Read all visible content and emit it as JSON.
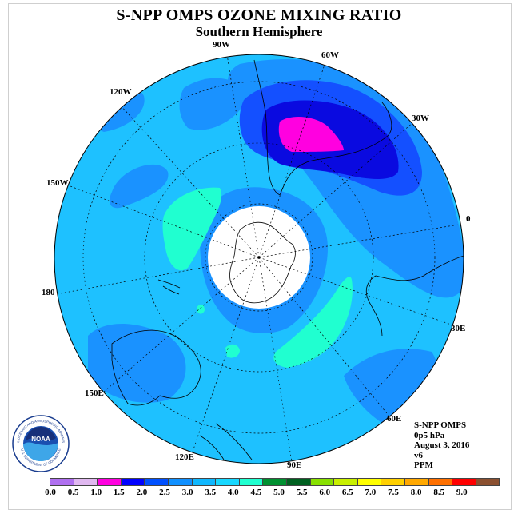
{
  "title": "S-NPP OMPS OZONE MIXING RATIO",
  "subtitle": "Southern Hemisphere",
  "longitude_labels": [
    "90W",
    "60W",
    "30W",
    "0",
    "30E",
    "60E",
    "90E",
    "120E",
    "150E",
    "180",
    "150W",
    "120W"
  ],
  "info": {
    "instrument": "S-NPP OMPS",
    "level": "0p5 hPa",
    "date": "August 3, 2016",
    "version": "v6",
    "unit": "PPM"
  },
  "logo": {
    "text": "NOAA",
    "ring_top": "NATIONAL OCEANIC AND ATMOSPHERIC ADMINISTRATION",
    "ring_bottom": "U.S. DEPARTMENT OF COMMERCE"
  },
  "colorbar": {
    "ticks": [
      "0.0",
      "0.5",
      "1.0",
      "1.5",
      "2.0",
      "2.5",
      "3.0",
      "3.5",
      "4.0",
      "4.5",
      "5.0",
      "5.5",
      "6.0",
      "6.5",
      "7.0",
      "7.5",
      "8.0",
      "8.5",
      "9.0"
    ],
    "colors": [
      "#b070f0",
      "#e0b8f0",
      "#ff00e0",
      "#0000ff",
      "#0050ff",
      "#1090ff",
      "#10b8ff",
      "#18d8ff",
      "#20ffd0",
      "#009030",
      "#006020",
      "#88e000",
      "#c8f000",
      "#ffff00",
      "#ffd000",
      "#ffa800",
      "#ff7000",
      "#ff0000",
      "#8b5030"
    ]
  },
  "colors": {
    "contour_3_0": "#1ec1ff",
    "contour_2_5": "#1a92ff",
    "contour_2_0": "#1450ff",
    "contour_1_5": "#0a0ae0",
    "contour_1_0": "#ff00e0",
    "contour_3_5": "#20ffd0"
  }
}
